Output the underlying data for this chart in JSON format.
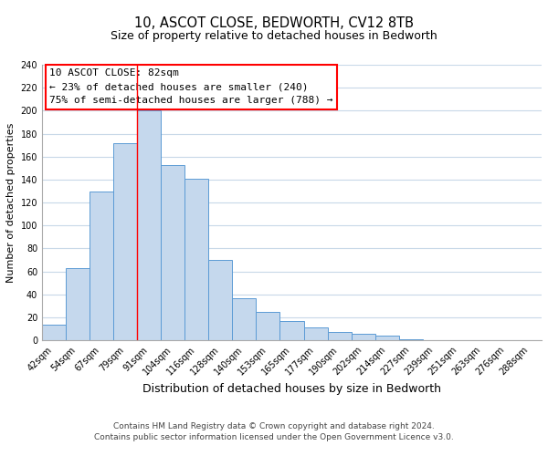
{
  "title": "10, ASCOT CLOSE, BEDWORTH, CV12 8TB",
  "subtitle": "Size of property relative to detached houses in Bedworth",
  "xlabel": "Distribution of detached houses by size in Bedworth",
  "ylabel": "Number of detached properties",
  "bar_labels": [
    "42sqm",
    "54sqm",
    "67sqm",
    "79sqm",
    "91sqm",
    "104sqm",
    "116sqm",
    "128sqm",
    "140sqm",
    "153sqm",
    "165sqm",
    "177sqm",
    "190sqm",
    "202sqm",
    "214sqm",
    "227sqm",
    "239sqm",
    "251sqm",
    "263sqm",
    "276sqm",
    "288sqm"
  ],
  "bar_values": [
    14,
    63,
    130,
    172,
    200,
    153,
    141,
    70,
    37,
    25,
    17,
    11,
    7,
    6,
    4,
    1,
    0,
    0,
    0,
    0,
    0
  ],
  "bar_color": "#c5d8ed",
  "bar_edge_color": "#5b9bd5",
  "ylim": [
    0,
    240
  ],
  "yticks": [
    0,
    20,
    40,
    60,
    80,
    100,
    120,
    140,
    160,
    180,
    200,
    220,
    240
  ],
  "property_label": "10 ASCOT CLOSE: 82sqm",
  "annotation_line1": "← 23% of detached houses are smaller (240)",
  "annotation_line2": "75% of semi-detached houses are larger (788) →",
  "vline_x_index": 3.5,
  "footnote1": "Contains HM Land Registry data © Crown copyright and database right 2024.",
  "footnote2": "Contains public sector information licensed under the Open Government Licence v3.0.",
  "background_color": "#ffffff",
  "grid_color": "#c8d8e8",
  "title_fontsize": 10.5,
  "subtitle_fontsize": 9,
  "xlabel_fontsize": 9,
  "ylabel_fontsize": 8,
  "tick_fontsize": 7,
  "annotation_fontsize": 8,
  "footnote_fontsize": 6.5
}
